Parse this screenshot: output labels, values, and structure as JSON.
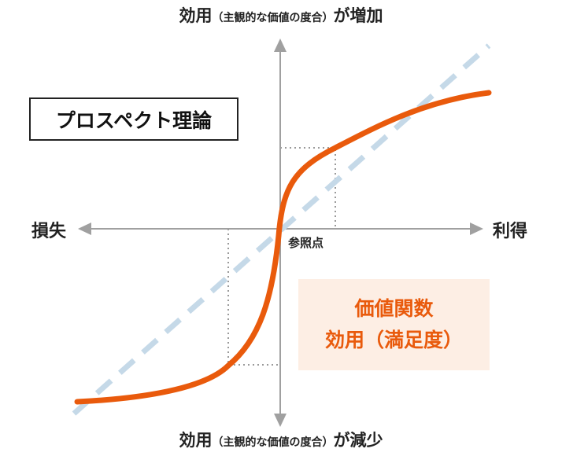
{
  "axes": {
    "y_top": {
      "main": "効用",
      "paren": "（主観的な価値の度合）",
      "suffix": "が増加"
    },
    "y_bottom": {
      "main": "効用",
      "paren": "（主観的な価値の度合）",
      "suffix": "が減少"
    },
    "x_left": "損失",
    "x_right": "利得"
  },
  "reference_point": "参照点",
  "title": "プロスペクト理論",
  "legend": {
    "line1": "価値関数",
    "line2": "効用（満足度）"
  },
  "colors": {
    "value_curve": "#e95a0c",
    "linear_line": "#c5d9e8",
    "axis": "#999999",
    "guide": "#999999",
    "legend_bg": "#fdeee4",
    "title_border": "#222222"
  }
}
